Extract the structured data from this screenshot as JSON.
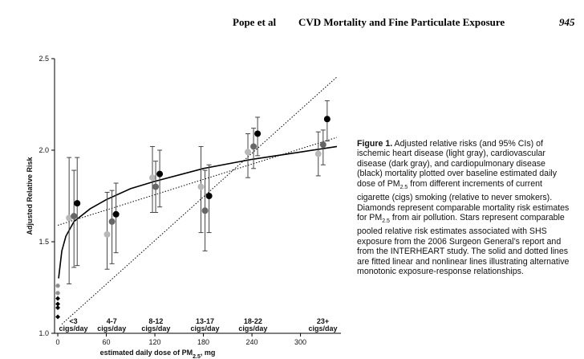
{
  "header": {
    "authors": "Pope et al",
    "running_title": "CVD Mortality and Fine Particulate Exposure",
    "page": "945"
  },
  "chart_data": {
    "type": "scatter",
    "y_label": "Adjusted Relative Risk",
    "x_label": [
      "estimated daily dose of PM",
      "2.5",
      ", mg"
    ],
    "xlim": [
      -4,
      350
    ],
    "ylim": [
      1.0,
      2.5
    ],
    "xticks": [
      0,
      60,
      120,
      180,
      240,
      300
    ],
    "yticks": [
      {
        "value": 1.0,
        "label": "1.0"
      },
      {
        "value": 1.5,
        "label": "1.5"
      },
      {
        "value": 2.0,
        "label": "2.0"
      },
      {
        "value": 2.5,
        "label": "2.5"
      }
    ],
    "groups": [
      {
        "label": "<3",
        "unit": "cigs/day"
      },
      {
        "label": "4-7",
        "unit": "cigs/day"
      },
      {
        "label": "8-12",
        "unit": "cigs/day"
      },
      {
        "label": "13-17",
        "unit": "cigs/day"
      },
      {
        "label": "18-22",
        "unit": "cigs/day"
      },
      {
        "label": "23+",
        "unit": "cigs/day"
      }
    ],
    "series": [
      {
        "color": "#b8b8b8",
        "x": [
          14,
          61,
          117,
          177,
          235,
          322
        ],
        "values": [
          1.63,
          1.54,
          1.85,
          1.8,
          1.99,
          1.98
        ],
        "lower": [
          1.27,
          1.35,
          1.66,
          1.55,
          1.85,
          1.86
        ],
        "upper": [
          1.96,
          1.77,
          2.02,
          2.02,
          2.09,
          2.1
        ]
      },
      {
        "color": "#666666",
        "x": [
          20,
          67,
          121,
          182,
          242,
          328
        ],
        "values": [
          1.64,
          1.61,
          1.8,
          1.67,
          2.02,
          2.03
        ],
        "lower": [
          1.36,
          1.38,
          1.66,
          1.45,
          1.9,
          1.92
        ],
        "upper": [
          1.89,
          1.78,
          1.94,
          1.89,
          2.12,
          2.11
        ]
      },
      {
        "color": "#000000",
        "x": [
          24,
          72,
          126,
          187,
          247,
          333
        ],
        "values": [
          1.71,
          1.65,
          1.87,
          1.75,
          2.09,
          2.17
        ],
        "lower": [
          1.37,
          1.44,
          1.69,
          1.55,
          1.97,
          2.05
        ],
        "upper": [
          1.96,
          1.82,
          2.0,
          1.92,
          2.18,
          2.27
        ]
      }
    ],
    "diamonds": {
      "color": "#000000",
      "x": [
        0,
        0,
        0,
        0
      ],
      "values": [
        1.09,
        1.14,
        1.16,
        1.19
      ]
    },
    "stars": {
      "color": "#888888",
      "x": [
        0,
        0
      ],
      "values": [
        1.22,
        1.26
      ]
    },
    "lines": [
      {
        "style": "solid",
        "x": [
          1,
          5,
          10,
          20,
          40,
          60,
          90,
          120,
          180,
          240,
          300,
          345
        ],
        "values": [
          1.3,
          1.45,
          1.53,
          1.61,
          1.68,
          1.73,
          1.79,
          1.83,
          1.9,
          1.95,
          1.99,
          2.02
        ]
      },
      {
        "style": "dotted",
        "x": [
          0,
          345
        ],
        "values": [
          1.59,
          2.07
        ]
      },
      {
        "style": "dotted",
        "x": [
          5,
          345
        ],
        "values": [
          1.05,
          2.4
        ]
      }
    ]
  },
  "caption": {
    "label": "Figure 1.",
    "text": [
      " Adjusted relative risks (and 95% CIs) of ischemic heart disease (light gray), cardiovascular disease (dark gray), and cardiopulmonary disease (black) mortality plotted over baseline estimated daily dose of PM",
      "2.5",
      " from different increments of current cigarette (cigs) smoking (relative to never smokers). Diamonds represent comparable mortality risk estimates for PM",
      "2.5",
      " from air pollution. Stars represent comparable pooled relative risk estimates associated with SHS exposure from the 2006 Surgeon General’s report and from the INTERHEART study. The solid and dotted lines are fitted linear and nonlinear lines illustrating alternative monotonic exposure-response relationships."
    ]
  }
}
